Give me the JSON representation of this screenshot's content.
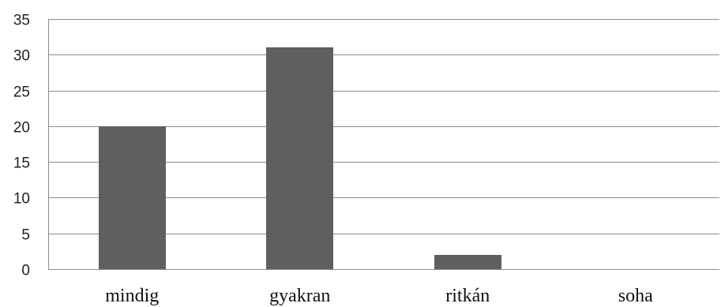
{
  "chart_data": {
    "type": "bar",
    "categories": [
      "mindig",
      "gyakran",
      "ritkán",
      "soha"
    ],
    "values": [
      20,
      31,
      2,
      0
    ],
    "ylim": [
      0,
      35
    ],
    "yticks": [
      0,
      5,
      10,
      15,
      20,
      25,
      30,
      35
    ],
    "grid": true,
    "legend": "none",
    "bar_color": "#5f5f5f"
  }
}
